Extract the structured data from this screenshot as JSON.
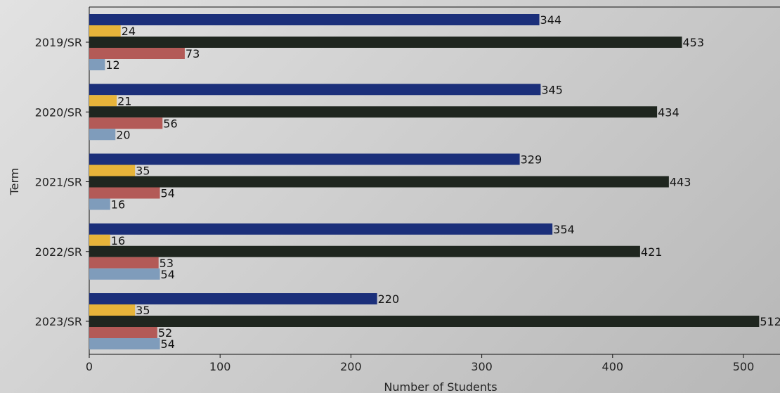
{
  "chart_data": {
    "type": "bar",
    "orientation": "horizontal",
    "xlabel": "Number of Students",
    "ylabel": "Term",
    "xlim": [
      0,
      530
    ],
    "x_ticks": [
      0,
      100,
      200,
      300,
      400,
      500
    ],
    "categories": [
      "2019/SR",
      "2020/SR",
      "2021/SR",
      "2022/SR",
      "2023/SR"
    ],
    "series": [
      {
        "color": "#1b2f7a",
        "values": [
          344,
          345,
          329,
          354,
          220
        ]
      },
      {
        "color": "#e7b43a",
        "values": [
          24,
          21,
          35,
          16,
          35
        ]
      },
      {
        "color": "#1f261f",
        "values": [
          453,
          434,
          443,
          421,
          512
        ]
      },
      {
        "color": "#b35a57",
        "values": [
          73,
          56,
          54,
          53,
          52
        ]
      },
      {
        "color": "#7f9cbb",
        "values": [
          12,
          20,
          16,
          54,
          54
        ]
      }
    ],
    "grid": false,
    "legend": "none"
  }
}
